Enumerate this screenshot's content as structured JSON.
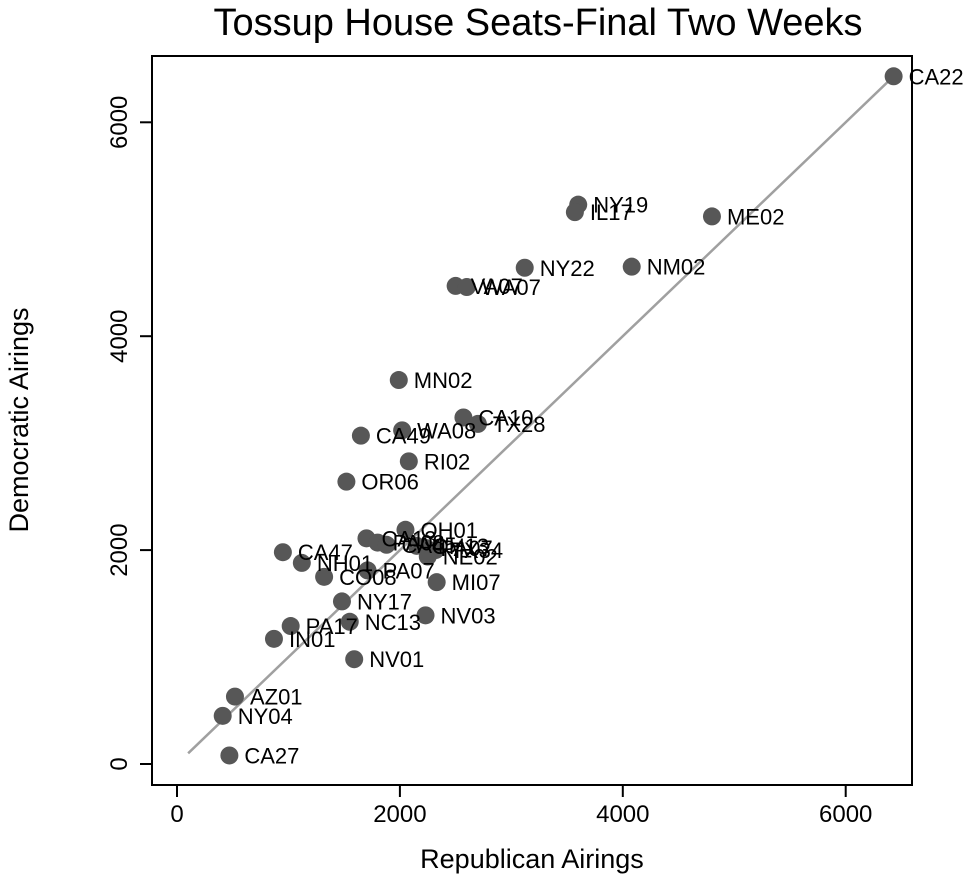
{
  "chart_data": {
    "type": "scatter",
    "title": "Tossup House Seats-Final Two Weeks",
    "xlabel": "Republican Airings",
    "ylabel": "Democratic Airings",
    "xlim": [
      -150,
      6650
    ],
    "ylim": [
      -250,
      6700
    ],
    "xticks": [
      "0",
      "2000",
      "4000",
      "6000"
    ],
    "yticks": [
      "0",
      "2000",
      "4000",
      "6000"
    ],
    "grid": false,
    "legend": false,
    "colors": {
      "point": "#575757",
      "line": "#a0a0a0",
      "frame": "#000000"
    },
    "fit_line": {
      "x": [
        100,
        6430
      ],
      "y": [
        100,
        6430
      ]
    },
    "points": [
      {
        "label": "CA22",
        "x": 6430,
        "y": 6430
      },
      {
        "label": "NY19",
        "x": 3600,
        "y": 5230
      },
      {
        "label": "IL17",
        "x": 3570,
        "y": 5160
      },
      {
        "label": "ME02",
        "x": 4800,
        "y": 5120
      },
      {
        "label": "NY22",
        "x": 3120,
        "y": 4640
      },
      {
        "label": "NM02",
        "x": 4080,
        "y": 4650
      },
      {
        "label": "VA07",
        "x": 2500,
        "y": 4470
      },
      {
        "label": "WA07",
        "x": 2600,
        "y": 4460
      },
      {
        "label": "MN02",
        "x": 1990,
        "y": 3590
      },
      {
        "label": "CA10",
        "x": 2570,
        "y": 3240
      },
      {
        "label": "TX28",
        "x": 2700,
        "y": 3180
      },
      {
        "label": "WA08",
        "x": 2020,
        "y": 3120
      },
      {
        "label": "CA49",
        "x": 1650,
        "y": 3070
      },
      {
        "label": "RI02",
        "x": 2080,
        "y": 2830
      },
      {
        "label": "OR06",
        "x": 1520,
        "y": 2640
      },
      {
        "label": "OH01",
        "x": 2050,
        "y": 2190
      },
      {
        "label": "CA13",
        "x": 1700,
        "y": 2110
      },
      {
        "label": "PA08",
        "x": 1800,
        "y": 2070
      },
      {
        "label": "CA45",
        "x": 1880,
        "y": 2050
      },
      {
        "label": "OH13",
        "x": 2150,
        "y": 2040
      },
      {
        "label": "PA07",
        "x": 2230,
        "y": 2020
      },
      {
        "label": "TX34",
        "x": 2320,
        "y": 2000
      },
      {
        "label": "NE02",
        "x": 2250,
        "y": 1940
      },
      {
        "label": "CA47",
        "x": 950,
        "y": 1980
      },
      {
        "label": "NH01",
        "x": 1120,
        "y": 1880
      },
      {
        "label": "PA07",
        "x": 1710,
        "y": 1810
      },
      {
        "label": "CO08",
        "x": 1320,
        "y": 1750
      },
      {
        "label": "MI07",
        "x": 2330,
        "y": 1700
      },
      {
        "label": "NY17",
        "x": 1480,
        "y": 1520
      },
      {
        "label": "NV03",
        "x": 2230,
        "y": 1390
      },
      {
        "label": "NC13",
        "x": 1550,
        "y": 1330
      },
      {
        "label": "PA17",
        "x": 1020,
        "y": 1290
      },
      {
        "label": "IN01",
        "x": 870,
        "y": 1170
      },
      {
        "label": "NV01",
        "x": 1590,
        "y": 980
      },
      {
        "label": "AZ01",
        "x": 520,
        "y": 630
      },
      {
        "label": "NY04",
        "x": 410,
        "y": 450
      },
      {
        "label": "CA27",
        "x": 470,
        "y": 80
      }
    ]
  }
}
